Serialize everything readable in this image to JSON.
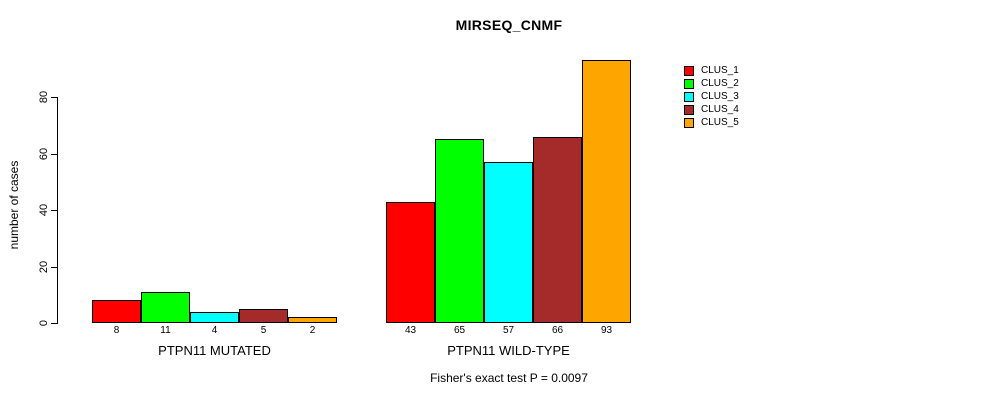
{
  "chart_data": {
    "type": "bar",
    "title": "MIRSEQ_CNMF",
    "ylabel": "number of cases",
    "xlabel": "",
    "annotation": "Fisher's exact test P = 0.0097",
    "grid": false,
    "legend_position": "right-outside",
    "ylim": [
      0,
      80
    ],
    "yticks": [
      0,
      20,
      40,
      60,
      80
    ],
    "series_names": [
      "CLUS_1",
      "CLUS_2",
      "CLUS_3",
      "CLUS_4",
      "CLUS_5"
    ],
    "colors": [
      "#FF0000",
      "#00FF00",
      "#00FFFF",
      "#A52A2A",
      "#FFA500"
    ],
    "groups": [
      {
        "label": "PTPN11 MUTATED",
        "values": [
          8,
          11,
          4,
          5,
          2
        ]
      },
      {
        "label": "PTPN11 WILD-TYPE",
        "values": [
          43,
          65,
          57,
          66,
          93
        ]
      }
    ]
  }
}
